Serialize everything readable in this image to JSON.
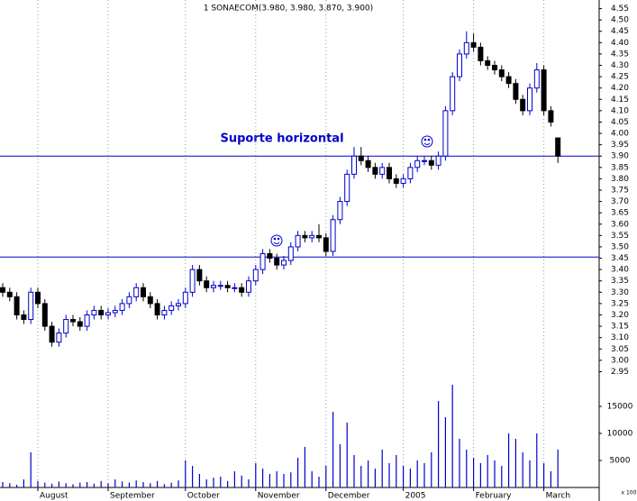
{
  "chart_data": {
    "type": "candlestick",
    "title": "1 SONAECOM(3.980, 3.980, 3.870, 3.900)",
    "annotation": "Suporte horizontal",
    "reference_lines": [
      3.9,
      3.455
    ],
    "reference_color": "#0000cc",
    "up_color": "#0000cc",
    "down_color": "#000000",
    "volume_color": "#0000cc",
    "x_labels": [
      {
        "value": 5,
        "label": "August"
      },
      {
        "value": 15,
        "label": "September"
      },
      {
        "value": 26,
        "label": "October"
      },
      {
        "value": 36,
        "label": "November"
      },
      {
        "value": 46,
        "label": "December"
      },
      {
        "value": 57,
        "label": "2005"
      },
      {
        "value": 67,
        "label": "February"
      },
      {
        "value": 77,
        "label": "March"
      }
    ],
    "open": [
      3.32,
      3.3,
      3.28,
      3.2,
      3.18,
      3.3,
      3.25,
      3.15,
      3.08,
      3.12,
      3.18,
      3.17,
      3.15,
      3.2,
      3.22,
      3.2,
      3.21,
      3.22,
      3.25,
      3.28,
      3.32,
      3.28,
      3.25,
      3.2,
      3.22,
      3.24,
      3.25,
      3.3,
      3.4,
      3.35,
      3.32,
      3.33,
      3.33,
      3.32,
      3.32,
      3.3,
      3.35,
      3.4,
      3.47,
      3.45,
      3.42,
      3.44,
      3.5,
      3.55,
      3.54,
      3.55,
      3.54,
      3.48,
      3.62,
      3.7,
      3.82,
      3.9,
      3.88,
      3.85,
      3.82,
      3.85,
      3.8,
      3.78,
      3.8,
      3.85,
      3.88,
      3.88,
      3.86,
      3.9,
      4.1,
      4.25,
      4.35,
      4.4,
      4.38,
      4.32,
      4.3,
      4.28,
      4.25,
      4.22,
      4.15,
      4.1,
      4.2,
      4.28,
      4.1,
      3.98
    ],
    "high": [
      3.34,
      3.32,
      3.3,
      3.22,
      3.32,
      3.32,
      3.27,
      3.17,
      3.14,
      3.2,
      3.2,
      3.19,
      3.22,
      3.24,
      3.24,
      3.23,
      3.24,
      3.27,
      3.3,
      3.34,
      3.34,
      3.3,
      3.27,
      3.24,
      3.26,
      3.27,
      3.32,
      3.42,
      3.42,
      3.37,
      3.35,
      3.35,
      3.35,
      3.34,
      3.34,
      3.37,
      3.42,
      3.49,
      3.49,
      3.47,
      3.46,
      3.52,
      3.57,
      3.57,
      3.57,
      3.6,
      3.56,
      3.64,
      3.72,
      3.84,
      3.94,
      3.94,
      3.9,
      3.87,
      3.87,
      3.87,
      3.82,
      3.82,
      3.87,
      3.9,
      3.9,
      3.9,
      3.92,
      4.12,
      4.27,
      4.37,
      4.45,
      4.44,
      4.4,
      4.34,
      4.32,
      4.3,
      4.27,
      4.24,
      4.17,
      4.22,
      4.31,
      4.3,
      4.12,
      3.98
    ],
    "low": [
      3.28,
      3.26,
      3.18,
      3.16,
      3.16,
      3.23,
      3.13,
      3.06,
      3.06,
      3.1,
      3.15,
      3.13,
      3.13,
      3.18,
      3.18,
      3.18,
      3.19,
      3.2,
      3.23,
      3.26,
      3.26,
      3.23,
      3.18,
      3.18,
      3.2,
      3.22,
      3.23,
      3.28,
      3.33,
      3.3,
      3.3,
      3.31,
      3.3,
      3.3,
      3.28,
      3.28,
      3.33,
      3.38,
      3.43,
      3.4,
      3.4,
      3.42,
      3.48,
      3.52,
      3.52,
      3.52,
      3.46,
      3.46,
      3.6,
      3.68,
      3.8,
      3.86,
      3.83,
      3.8,
      3.8,
      3.78,
      3.76,
      3.76,
      3.78,
      3.83,
      3.86,
      3.84,
      3.84,
      3.88,
      4.08,
      4.23,
      4.33,
      4.36,
      4.3,
      4.28,
      4.26,
      4.23,
      4.2,
      4.13,
      4.08,
      4.08,
      4.18,
      4.08,
      4.03,
      3.87
    ],
    "close": [
      3.3,
      3.28,
      3.2,
      3.18,
      3.3,
      3.25,
      3.15,
      3.08,
      3.12,
      3.18,
      3.17,
      3.15,
      3.2,
      3.22,
      3.2,
      3.21,
      3.22,
      3.25,
      3.28,
      3.32,
      3.28,
      3.25,
      3.2,
      3.22,
      3.24,
      3.25,
      3.3,
      3.4,
      3.35,
      3.32,
      3.33,
      3.33,
      3.32,
      3.32,
      3.3,
      3.35,
      3.4,
      3.47,
      3.45,
      3.42,
      3.44,
      3.5,
      3.55,
      3.54,
      3.55,
      3.54,
      3.48,
      3.62,
      3.7,
      3.82,
      3.9,
      3.88,
      3.85,
      3.82,
      3.85,
      3.8,
      3.78,
      3.8,
      3.85,
      3.88,
      3.88,
      3.86,
      3.9,
      4.1,
      4.25,
      4.35,
      4.4,
      4.38,
      4.32,
      4.3,
      4.28,
      4.25,
      4.22,
      4.15,
      4.1,
      4.2,
      4.28,
      4.1,
      4.05,
      3.9
    ],
    "volume": [
      1000,
      800,
      500,
      1500,
      6500,
      1200,
      900,
      700,
      1100,
      800,
      600,
      900,
      1000,
      700,
      1200,
      800,
      1500,
      1100,
      900,
      1300,
      1000,
      800,
      1200,
      600,
      900,
      1300,
      5000,
      4000,
      2500,
      1500,
      1800,
      2000,
      1200,
      3000,
      2200,
      1500,
      4500,
      3500,
      2500,
      3000,
      2500,
      2800,
      5500,
      7500,
      3000,
      2000,
      4000,
      14000,
      8000,
      12000,
      6000,
      4000,
      5000,
      3500,
      7000,
      4500,
      6000,
      4000,
      3500,
      5000,
      4500,
      6500,
      16000,
      13000,
      19000,
      9000,
      7000,
      5500,
      4500,
      6000,
      5000,
      4000,
      10000,
      9000,
      6500,
      5000,
      10000,
      4500,
      3000,
      7000
    ],
    "ylim": [
      2.92,
      4.58
    ],
    "yticks": [
      2.95,
      {
        "value": 3.0,
        "label": "3.00"
      },
      3.05,
      {
        "value": 3.1,
        "label": "3.10"
      },
      3.15,
      {
        "value": 3.2,
        "label": "3.20"
      },
      3.25,
      {
        "value": 3.3,
        "label": "3.30"
      },
      3.35,
      {
        "value": 3.4,
        "label": "3.40"
      },
      3.45,
      {
        "value": 3.5,
        "label": "3.50"
      },
      3.55,
      {
        "value": 3.6,
        "label": "3.60"
      },
      3.65,
      {
        "value": 3.7,
        "label": "3.70"
      },
      3.75,
      {
        "value": 3.8,
        "label": "3.80"
      },
      3.85,
      {
        "value": 3.9,
        "label": "3.90"
      },
      3.95,
      {
        "value": 4.0,
        "label": "4.00"
      },
      4.05,
      {
        "value": 4.1,
        "label": "4.10"
      },
      4.15,
      {
        "value": 4.2,
        "label": "4.20"
      },
      4.25,
      {
        "value": 4.3,
        "label": "4.30"
      },
      4.35,
      {
        "value": 4.4,
        "label": "4.40"
      },
      4.45,
      {
        "value": 4.5,
        "label": "4.50"
      },
      4.55
    ],
    "y2lim": [
      0,
      19000
    ],
    "y2ticks": [
      5000,
      10000,
      15000
    ],
    "volume_unit": "x 100",
    "grid": true
  }
}
